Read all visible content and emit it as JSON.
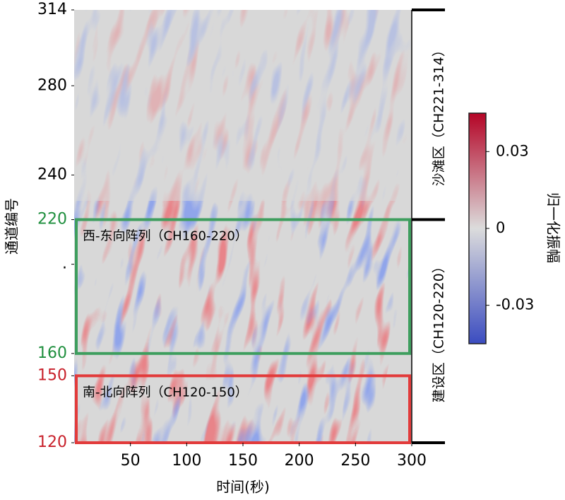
{
  "chart_data": {
    "type": "heatmap",
    "xlabel": "时间(秒)",
    "ylabel": "通道编号",
    "xlim": [
      0,
      300
    ],
    "xticks": [
      50,
      100,
      150,
      200,
      250,
      300
    ],
    "ylim": [
      120,
      314
    ],
    "yticks": [
      120,
      150,
      160,
      {
        "value": 200,
        "label": "."
      },
      220,
      240,
      280,
      314
    ],
    "ytick_label_colors": [
      "#c8202a",
      "#c8202a",
      "#1f8f3e",
      "#000000",
      "#1f8f3e",
      "#000000",
      "#000000",
      "#000000"
    ],
    "regions": [
      {
        "label": "西-东向阵列（CH160-220）",
        "color": "#3e9e5e",
        "range": [
          160,
          220
        ]
      },
      {
        "label": "南-北向阵列（CH120-150）",
        "color": "#e23b3b",
        "range": [
          120,
          150
        ]
      }
    ],
    "zones": [
      {
        "label": "沙滩区（CH221-314）",
        "range": [
          220,
          314
        ]
      },
      {
        "label": "建设区（CH120-220）",
        "range": [
          120,
          220
        ]
      }
    ],
    "colorbar": {
      "label": "归一化振幅",
      "clim": [
        -0.045,
        0.045
      ],
      "ticks": [
        0.03,
        0,
        -0.03
      ],
      "colormap": [
        "#3b4cc0",
        "#dcdcdc",
        "#b40426"
      ]
    }
  }
}
